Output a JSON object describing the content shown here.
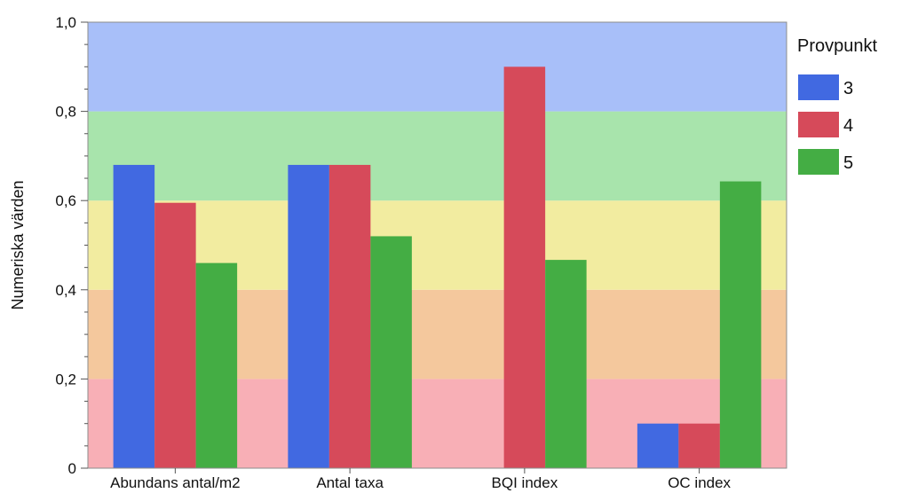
{
  "chart_data": {
    "type": "bar",
    "categories": [
      "Abundans antal/m2",
      "Antal taxa",
      "BQI index",
      "OC index"
    ],
    "series": [
      {
        "name": "3",
        "color": "#4169e1",
        "values": [
          0.68,
          0.68,
          null,
          0.1
        ]
      },
      {
        "name": "4",
        "color": "#d64a5a",
        "values": [
          0.595,
          0.68,
          0.9,
          0.1
        ]
      },
      {
        "name": "5",
        "color": "#44ad44",
        "values": [
          0.46,
          0.52,
          0.467,
          0.643
        ]
      }
    ],
    "ylabel": "Numeriska värden",
    "ylim": [
      0,
      1.0
    ],
    "yticks": [
      "0",
      "0,2",
      "0,4",
      "0,6",
      "0,8",
      "1,0"
    ],
    "ytick_values": [
      0,
      0.2,
      0.4,
      0.6,
      0.8,
      1.0
    ],
    "legend_title": "Provpunkt",
    "legend_position": "right",
    "grid": false,
    "background_bands": [
      {
        "from": 0.0,
        "to": 0.2,
        "color": "#f8afb6"
      },
      {
        "from": 0.2,
        "to": 0.4,
        "color": "#f4c89d"
      },
      {
        "from": 0.4,
        "to": 0.6,
        "color": "#f2eca0"
      },
      {
        "from": 0.6,
        "to": 0.8,
        "color": "#a8e4ac"
      },
      {
        "from": 0.8,
        "to": 1.0,
        "color": "#a8bff9"
      }
    ]
  }
}
